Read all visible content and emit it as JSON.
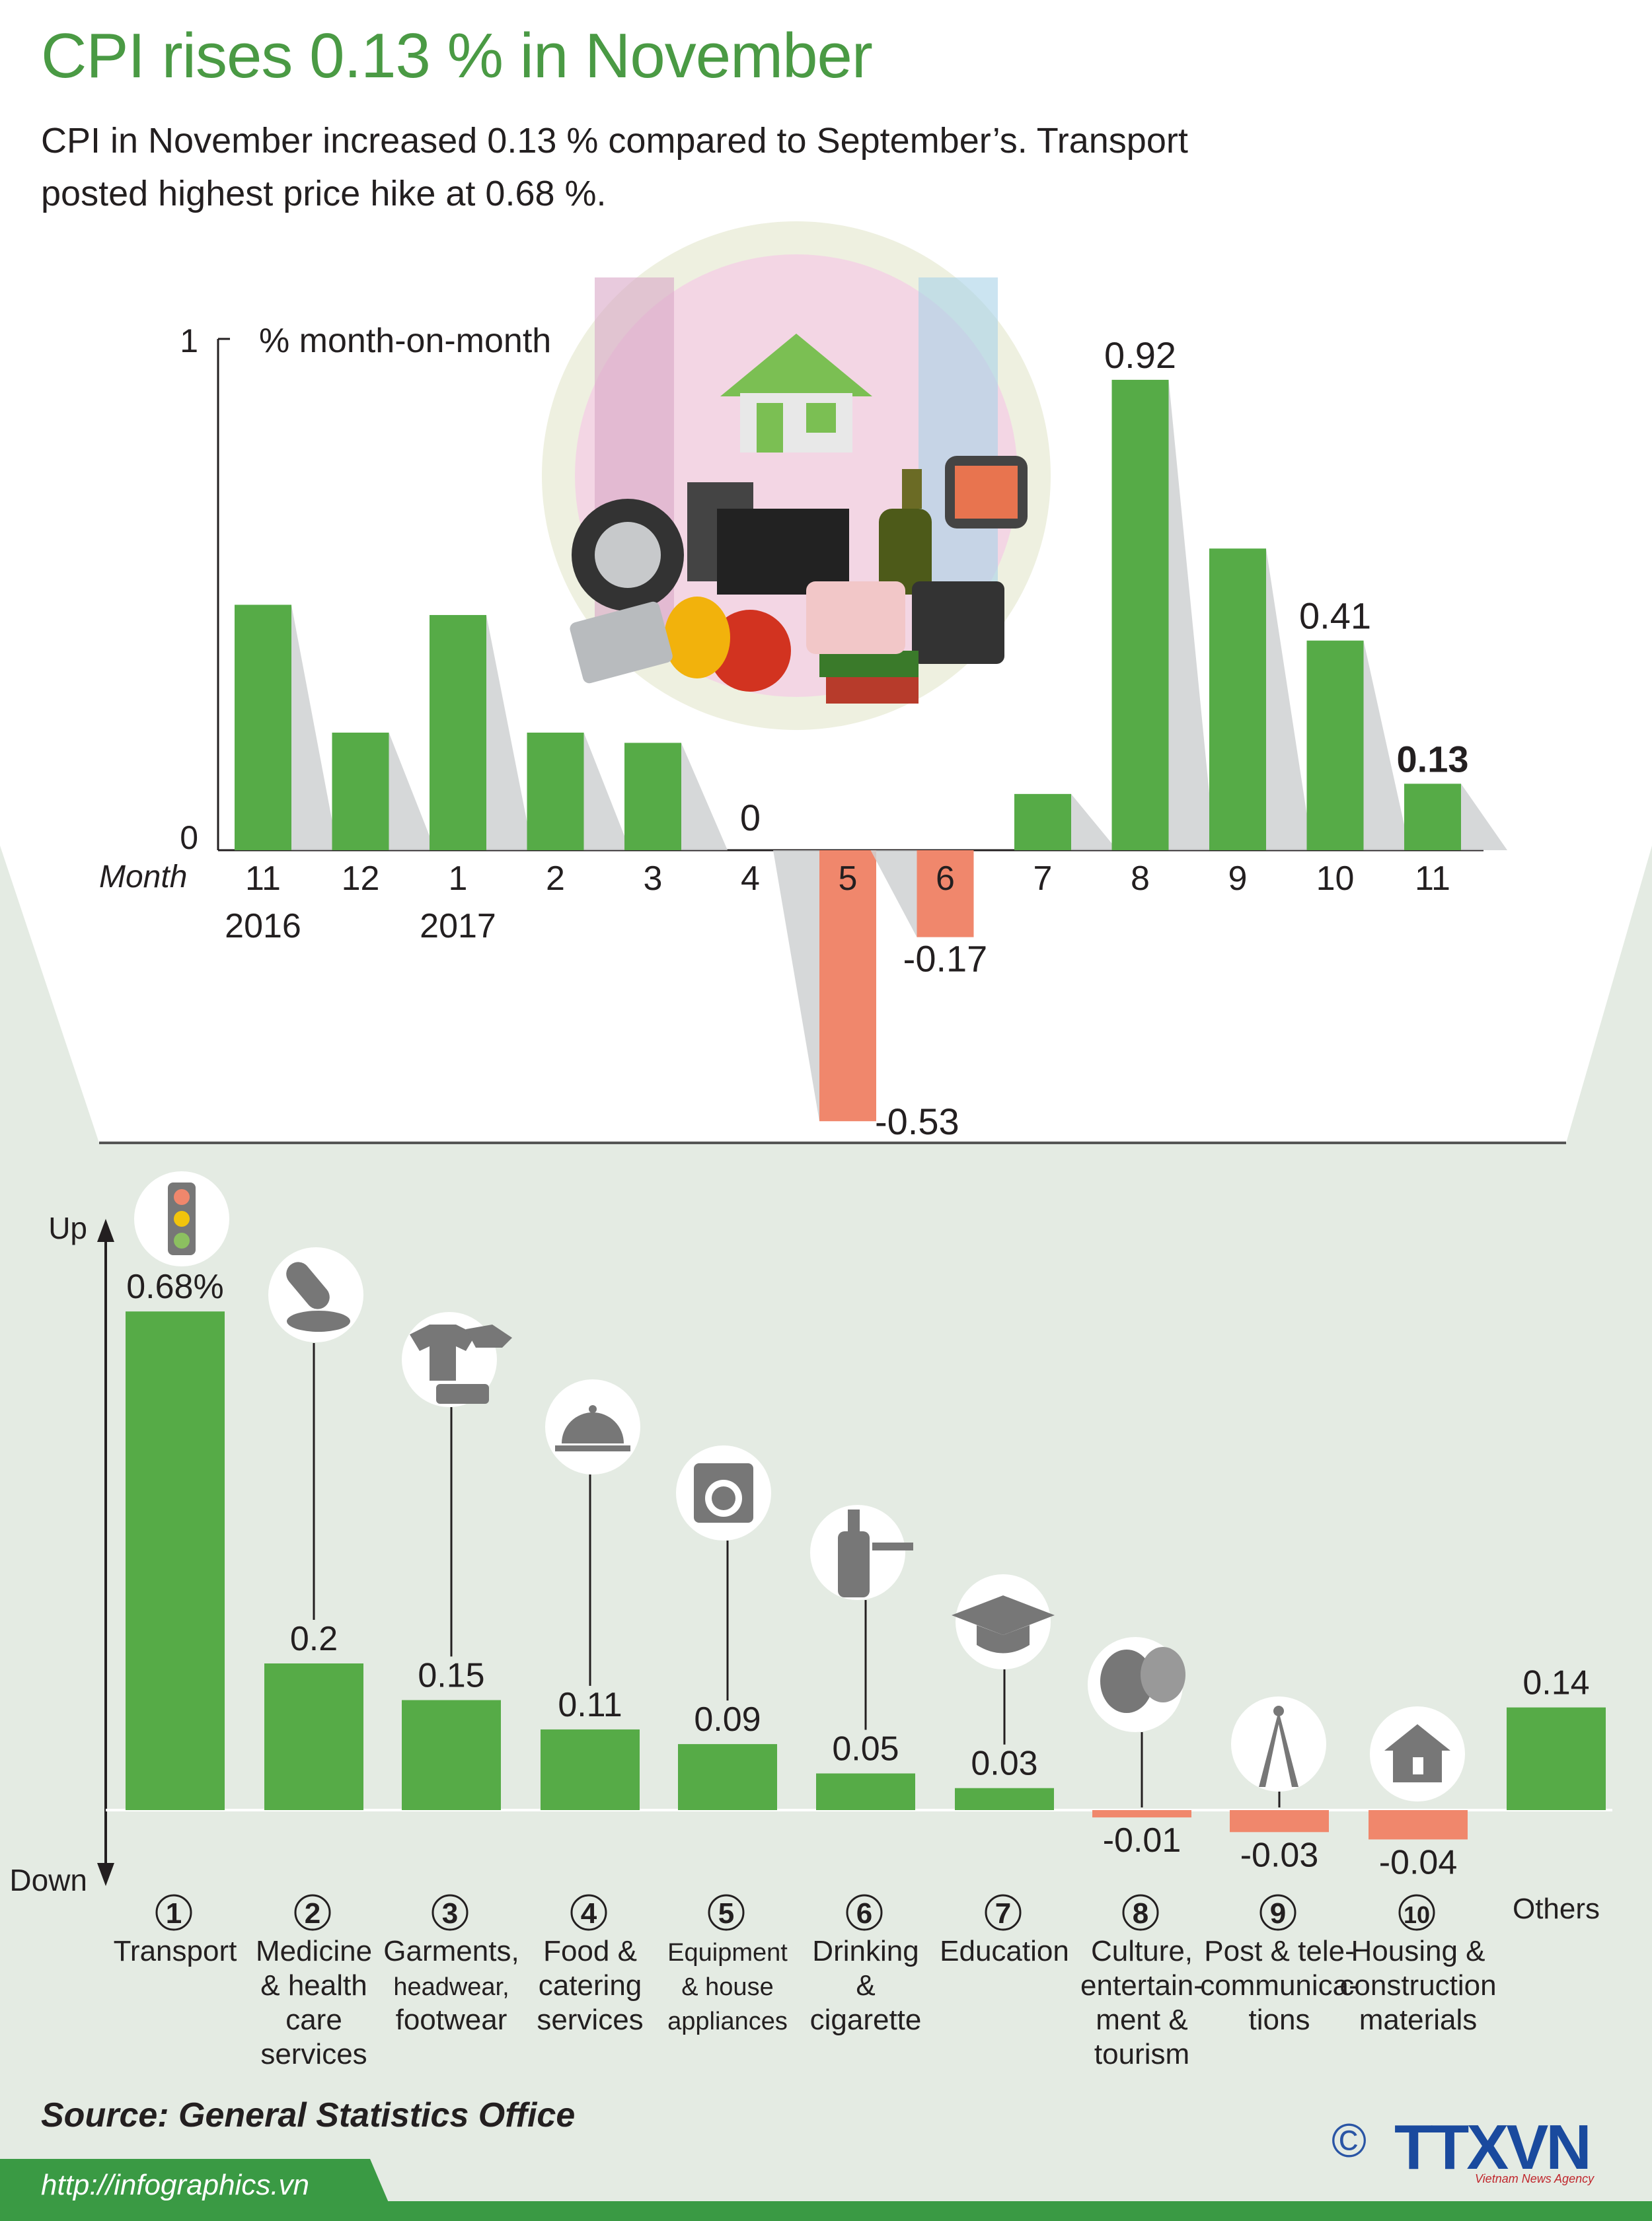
{
  "header": {
    "title": "CPI rises 0.13 % in November",
    "subtitle_line1": "CPI in November increased 0.13 % compared to September’s. Transport",
    "subtitle_line2": "posted highest price hike at 0.68 %."
  },
  "colors": {
    "positive": "#56ab47",
    "negative": "#f0876c",
    "title": "#4a9a44",
    "panel": "#e4ebe3",
    "footer": "#3a9a44"
  },
  "chart_data": [
    {
      "type": "bar",
      "ylabel": "% month-on-month",
      "xlabel": "Month",
      "ylim": [
        -0.53,
        1
      ],
      "y_ticks": [
        "0",
        "1"
      ],
      "categories": [
        "11",
        "12",
        "1",
        "2",
        "3",
        "4",
        "5",
        "6",
        "7",
        "8",
        "9",
        "10",
        "11"
      ],
      "year_labels": [
        "2016",
        "",
        "2017",
        "",
        "",
        "",
        "",
        "",
        "",
        "",
        "",
        "",
        ""
      ],
      "values": [
        0.48,
        0.23,
        0.46,
        0.23,
        0.21,
        0,
        -0.53,
        -0.17,
        0.11,
        0.92,
        0.59,
        0.41,
        0.13
      ],
      "data_labels": [
        "",
        "",
        "",
        "",
        "",
        "0",
        "-0.53",
        "-0.17",
        "",
        "0.92",
        "",
        "0.41",
        "0.13"
      ],
      "highlight_last": true
    },
    {
      "type": "bar",
      "y_axis_top_label": "Up",
      "y_axis_bottom_label": "Down",
      "categories": [
        {
          "num": "1",
          "lines": [
            "Transport"
          ],
          "icon": "traffic-light-icon"
        },
        {
          "num": "2",
          "lines": [
            "Medicine",
            "& health",
            "care",
            "services"
          ],
          "icon": "pills-icon"
        },
        {
          "num": "3",
          "lines": [
            "Garments,",
            "headwear,",
            "footwear"
          ],
          "icon": "clothes-icon"
        },
        {
          "num": "4",
          "lines": [
            "Food &",
            "catering",
            "services"
          ],
          "icon": "food-cloche-icon"
        },
        {
          "num": "5",
          "lines": [
            "Equipment",
            "& house",
            "appliances"
          ],
          "icon": "washing-machine-icon"
        },
        {
          "num": "6",
          "lines": [
            "Drinking",
            "&",
            "cigarette"
          ],
          "icon": "bottle-cigarette-icon"
        },
        {
          "num": "7",
          "lines": [
            "Education"
          ],
          "icon": "graduation-cap-icon"
        },
        {
          "num": "8",
          "lines": [
            "Culture,",
            "entertain-",
            "ment &",
            "tourism"
          ],
          "icon": "theater-masks-icon"
        },
        {
          "num": "9",
          "lines": [
            "Post & tele-",
            "communica-",
            "tions"
          ],
          "icon": "antenna-tower-icon"
        },
        {
          "num": "10",
          "lines": [
            "Housing &",
            "construction",
            "materials"
          ],
          "icon": "house-icon"
        },
        {
          "num": "",
          "lines": [
            "Others"
          ],
          "icon": ""
        }
      ],
      "values": [
        0.68,
        0.2,
        0.15,
        0.11,
        0.09,
        0.05,
        0.03,
        -0.01,
        -0.03,
        -0.04,
        0.14
      ],
      "data_labels": [
        "0.68%",
        "0.2",
        "0.15",
        "0.11",
        "0.09",
        "0.05",
        "0.03",
        "-0.01",
        "-0.03",
        "-0.04",
        "0.14"
      ]
    }
  ],
  "footer": {
    "source": "Source: General Statistics Office",
    "url": "http://infographics.vn",
    "copyright": "©",
    "logo": "TTXVN",
    "logo_sub": "Vietnam News Agency"
  }
}
